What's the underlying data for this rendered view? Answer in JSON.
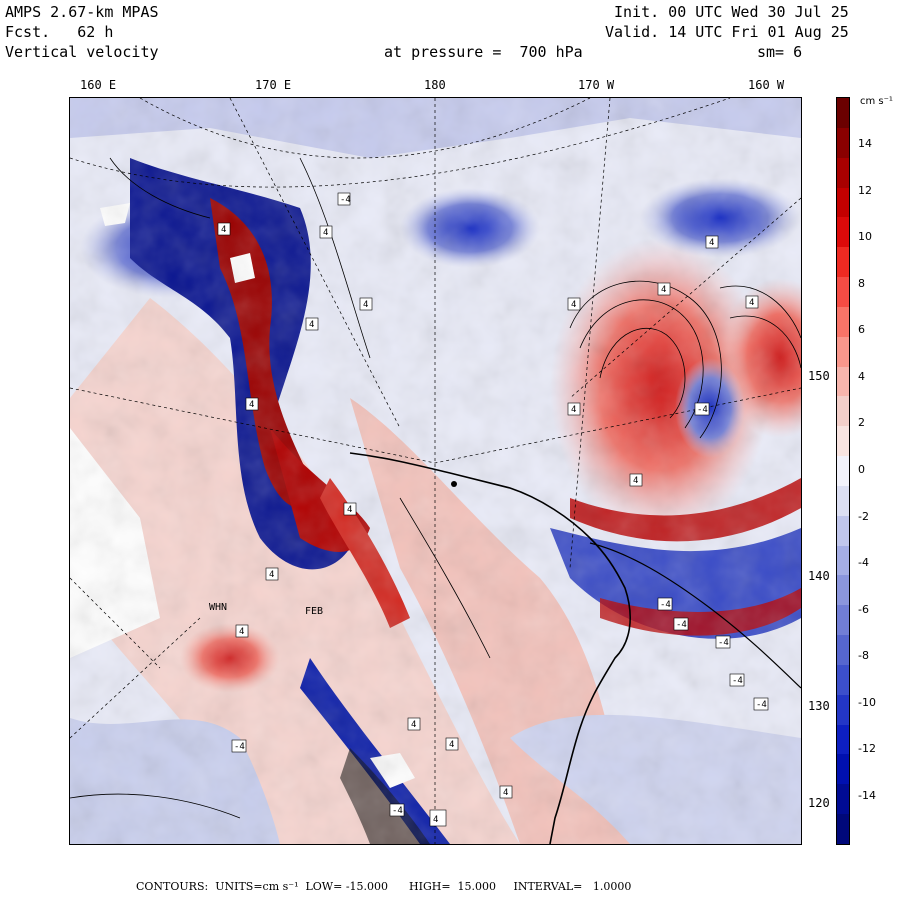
{
  "header": {
    "model": "AMPS 2.67-km MPAS",
    "forecast": "Fcst.   62 h",
    "field": "Vertical velocity",
    "init": "Init. 00 UTC Wed 30 Jul 25",
    "valid": "Valid. 14 UTC Fri 01 Aug 25",
    "pressure": "at pressure =  700 hPa",
    "smoothing": "sm= 6"
  },
  "longitude_labels": [
    "160 E",
    "170 E",
    "180",
    "170 W",
    "160 W"
  ],
  "latitude_labels": [
    "150 W",
    "140 W",
    "130 W",
    "120 W"
  ],
  "map_labels": {
    "station_a": "WHN",
    "station_b": "FEB"
  },
  "colorbar": {
    "units": "cm s⁻¹",
    "ticks": [
      "14",
      "12",
      "10",
      "8",
      "6",
      "4",
      "2",
      "0",
      "-2",
      "-4",
      "-6",
      "-8",
      "-10",
      "-12",
      "-14"
    ],
    "colors": [
      "#6b0000",
      "#8a0000",
      "#a80000",
      "#c40000",
      "#dc0a0a",
      "#ee2a22",
      "#f54c44",
      "#f87468",
      "#f9978c",
      "#f7b5ad",
      "#f3cfca",
      "#f8e4e1",
      "#f2f2fb",
      "#dcdff3",
      "#c0c6ec",
      "#a5aee5",
      "#8b96dd",
      "#717ed6",
      "#5666cf",
      "#3c4fcb",
      "#2336c6",
      "#0d1fc1",
      "#0010b0",
      "#000b93",
      "#00087a"
    ]
  },
  "footer": {
    "text": "CONTOURS:  UNITS=cm s⁻¹  LOW= -15.000      HIGH=  15.000     INTERVAL=   1.0000"
  },
  "colors": {
    "positive": "#d81010",
    "negative": "#1a2fd0",
    "coast": "#000000"
  }
}
